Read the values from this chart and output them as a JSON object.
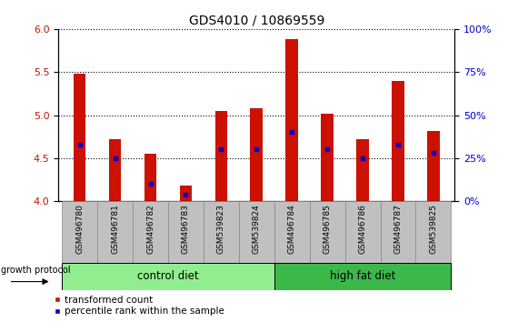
{
  "title": "GDS4010 / 10869559",
  "samples": [
    "GSM496780",
    "GSM496781",
    "GSM496782",
    "GSM496783",
    "GSM539823",
    "GSM539824",
    "GSM496784",
    "GSM496785",
    "GSM496786",
    "GSM496787",
    "GSM539825"
  ],
  "transformed_counts": [
    5.48,
    4.72,
    4.55,
    4.18,
    5.05,
    5.08,
    5.88,
    5.02,
    4.72,
    5.4,
    4.82
  ],
  "percentile_ranks": [
    33,
    25,
    10,
    4,
    30,
    30,
    40,
    30,
    25,
    33,
    28
  ],
  "ylim": [
    4.0,
    6.0
  ],
  "yticks_left": [
    4.0,
    4.5,
    5.0,
    5.5,
    6.0
  ],
  "yticks_right": [
    0,
    25,
    50,
    75,
    100
  ],
  "groups": [
    {
      "label": "control diet",
      "start": 0,
      "end": 6,
      "color": "#90EE90"
    },
    {
      "label": "high fat diet",
      "start": 6,
      "end": 11,
      "color": "#3CB84A"
    }
  ],
  "bar_color": "#CC1100",
  "blue_marker_color": "#0000CC",
  "bar_width": 0.35,
  "background_color": "#FFFFFF",
  "plot_bg_color": "#FFFFFF",
  "tick_label_color_left": "#CC1100",
  "tick_label_color_right": "#0000CC",
  "sample_box_color": "#C0C0C0",
  "sample_box_border": "#888888",
  "growth_protocol_label": "growth protocol",
  "legend_items": [
    "transformed count",
    "percentile rank within the sample"
  ]
}
